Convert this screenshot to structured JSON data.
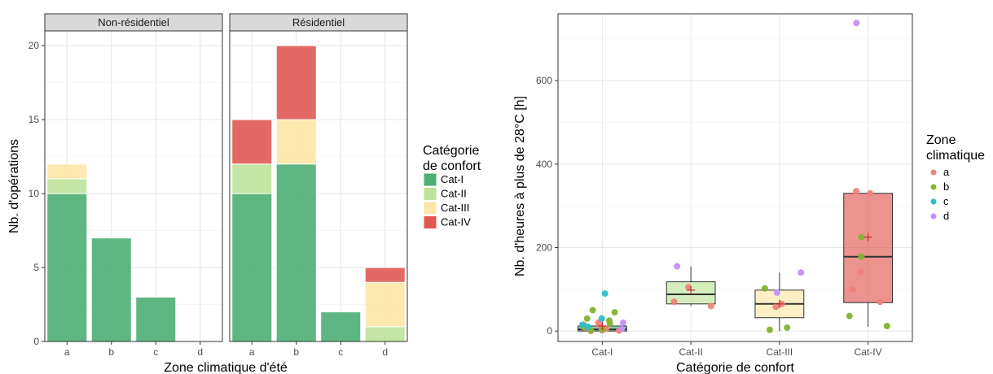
{
  "colors": {
    "Cat-I": "#4daf74",
    "Cat-II": "#bde39a",
    "Cat-III": "#fde6a6",
    "Cat-IV": "#df5953",
    "zone_a": "#f0837a",
    "zone_b": "#84b330",
    "zone_c": "#2fbfc3",
    "zone_d": "#c78ef5",
    "mean_marker": "#c03030"
  },
  "chart_data": [
    {
      "type": "bar",
      "stacked": true,
      "facets": [
        "Non-résidentiel",
        "Résidentiel"
      ],
      "categories": [
        "a",
        "b",
        "c",
        "d"
      ],
      "xlabel": "Zone climatique d'été",
      "ylabel": "Nb. d'opérations",
      "ylim": [
        0,
        21
      ],
      "yticks": [
        0,
        5,
        10,
        15,
        20
      ],
      "grid": true,
      "legend": {
        "title": [
          "Catégorie",
          "de confort"
        ],
        "items": [
          "Cat-I",
          "Cat-II",
          "Cat-III",
          "Cat-IV"
        ],
        "position": "right"
      },
      "series": [
        {
          "name": "Cat-I",
          "values": {
            "Non-résidentiel": [
              10,
              7,
              3,
              0
            ],
            "Résidentiel": [
              10,
              12,
              2,
              0
            ]
          }
        },
        {
          "name": "Cat-II",
          "values": {
            "Non-résidentiel": [
              1,
              0,
              0,
              0
            ],
            "Résidentiel": [
              2,
              0,
              0,
              1
            ]
          }
        },
        {
          "name": "Cat-III",
          "values": {
            "Non-résidentiel": [
              1,
              0,
              0,
              0
            ],
            "Résidentiel": [
              0,
              3,
              0,
              3
            ]
          }
        },
        {
          "name": "Cat-IV",
          "values": {
            "Non-résidentiel": [
              0,
              0,
              0,
              0
            ],
            "Résidentiel": [
              3,
              5,
              0,
              1
            ]
          }
        }
      ]
    },
    {
      "type": "box",
      "categories": [
        "Cat-I",
        "Cat-II",
        "Cat-III",
        "Cat-IV"
      ],
      "xlabel": "Catégorie de confort",
      "ylabel": "Nb. d'heures à plus de 28°C [h]",
      "ylim": [
        -25,
        760
      ],
      "yticks": [
        0,
        200,
        400,
        600
      ],
      "grid": true,
      "legend": {
        "title": [
          "Zone",
          "climatique"
        ],
        "items": [
          "a",
          "b",
          "c",
          "d"
        ],
        "position": "right"
      },
      "boxes": [
        {
          "category": "Cat-I",
          "q1": 0,
          "median": 4,
          "q3": 12,
          "whisker_low": 0,
          "whisker_high": 30,
          "mean": 12
        },
        {
          "category": "Cat-II",
          "q1": 65,
          "median": 88,
          "q3": 118,
          "whisker_low": 60,
          "whisker_high": 155,
          "mean": 98
        },
        {
          "category": "Cat-III",
          "q1": 32,
          "median": 65,
          "q3": 98,
          "whisker_low": 0,
          "whisker_high": 140,
          "mean": 65
        },
        {
          "category": "Cat-IV",
          "q1": 68,
          "median": 178,
          "q3": 330,
          "whisker_low": 10,
          "whisker_high": 335,
          "mean": 225
        }
      ],
      "points": [
        {
          "category": "Cat-I",
          "zone": "a",
          "y": 2
        },
        {
          "category": "Cat-I",
          "zone": "a",
          "y": 5
        },
        {
          "category": "Cat-I",
          "zone": "a",
          "y": 8
        },
        {
          "category": "Cat-I",
          "zone": "a",
          "y": 0
        },
        {
          "category": "Cat-I",
          "zone": "a",
          "y": 12
        },
        {
          "category": "Cat-I",
          "zone": "a",
          "y": 3
        },
        {
          "category": "Cat-I",
          "zone": "a",
          "y": 15
        },
        {
          "category": "Cat-I",
          "zone": "a",
          "y": 1
        },
        {
          "category": "Cat-I",
          "zone": "a",
          "y": 6
        },
        {
          "category": "Cat-I",
          "zone": "a",
          "y": 20
        },
        {
          "category": "Cat-I",
          "zone": "b",
          "y": 50
        },
        {
          "category": "Cat-I",
          "zone": "b",
          "y": 45
        },
        {
          "category": "Cat-I",
          "zone": "b",
          "y": 25
        },
        {
          "category": "Cat-I",
          "zone": "b",
          "y": 10
        },
        {
          "category": "Cat-I",
          "zone": "b",
          "y": 4
        },
        {
          "category": "Cat-I",
          "zone": "b",
          "y": 2
        },
        {
          "category": "Cat-I",
          "zone": "b",
          "y": 18
        },
        {
          "category": "Cat-I",
          "zone": "b",
          "y": 30
        },
        {
          "category": "Cat-I",
          "zone": "c",
          "y": 90
        },
        {
          "category": "Cat-I",
          "zone": "c",
          "y": 30
        },
        {
          "category": "Cat-I",
          "zone": "c",
          "y": 10
        },
        {
          "category": "Cat-I",
          "zone": "c",
          "y": 15
        },
        {
          "category": "Cat-I",
          "zone": "d",
          "y": 5
        },
        {
          "category": "Cat-I",
          "zone": "d",
          "y": 20
        },
        {
          "category": "Cat-II",
          "zone": "a",
          "y": 70
        },
        {
          "category": "Cat-II",
          "zone": "a",
          "y": 105
        },
        {
          "category": "Cat-II",
          "zone": "a",
          "y": 60
        },
        {
          "category": "Cat-II",
          "zone": "d",
          "y": 155
        },
        {
          "category": "Cat-III",
          "zone": "a",
          "y": 58
        },
        {
          "category": "Cat-III",
          "zone": "a",
          "y": 65
        },
        {
          "category": "Cat-III",
          "zone": "b",
          "y": 8
        },
        {
          "category": "Cat-III",
          "zone": "b",
          "y": 3
        },
        {
          "category": "Cat-III",
          "zone": "b",
          "y": 102
        },
        {
          "category": "Cat-III",
          "zone": "d",
          "y": 140
        },
        {
          "category": "Cat-III",
          "zone": "d",
          "y": 92
        },
        {
          "category": "Cat-IV",
          "zone": "a",
          "y": 335
        },
        {
          "category": "Cat-IV",
          "zone": "a",
          "y": 330
        },
        {
          "category": "Cat-IV",
          "zone": "a",
          "y": 142
        },
        {
          "category": "Cat-IV",
          "zone": "a",
          "y": 100
        },
        {
          "category": "Cat-IV",
          "zone": "a",
          "y": 70
        },
        {
          "category": "Cat-IV",
          "zone": "b",
          "y": 225
        },
        {
          "category": "Cat-IV",
          "zone": "b",
          "y": 178
        },
        {
          "category": "Cat-IV",
          "zone": "b",
          "y": 36
        },
        {
          "category": "Cat-IV",
          "zone": "b",
          "y": 12
        },
        {
          "category": "Cat-IV",
          "zone": "d",
          "y": 738
        }
      ]
    }
  ]
}
